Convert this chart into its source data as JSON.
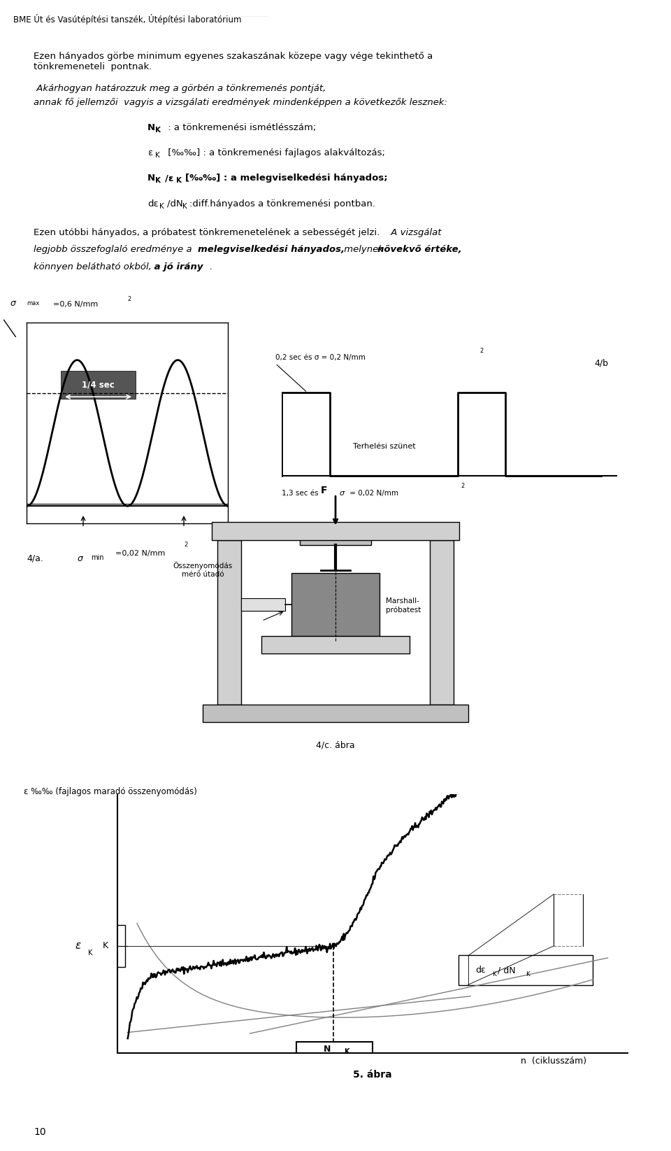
{
  "title_header": "BME Út és Vasútépítési tanszék, Útépítési laboratórium",
  "quarter_sec": "1/4 sec",
  "fig4a_label": "4/a.",
  "fig4b_label": "4/b",
  "pulse_label2": "Terhelési szünet",
  "fig4c_label": "4/c. ábra",
  "összenyomódás_label": "Összenyomódás\nmérő útadó",
  "marshall_label": "Marshall-\npróbatest",
  "F_label": "F",
  "epsilon_ylabel": "ε ‰‰ (fajlagos maradó összenyomódás)",
  "NK_xlabel": "n  (ciklusszám)",
  "fig5_label": "5. ábra",
  "page_number": "10",
  "bg_color": "#ffffff",
  "text_color": "#000000"
}
